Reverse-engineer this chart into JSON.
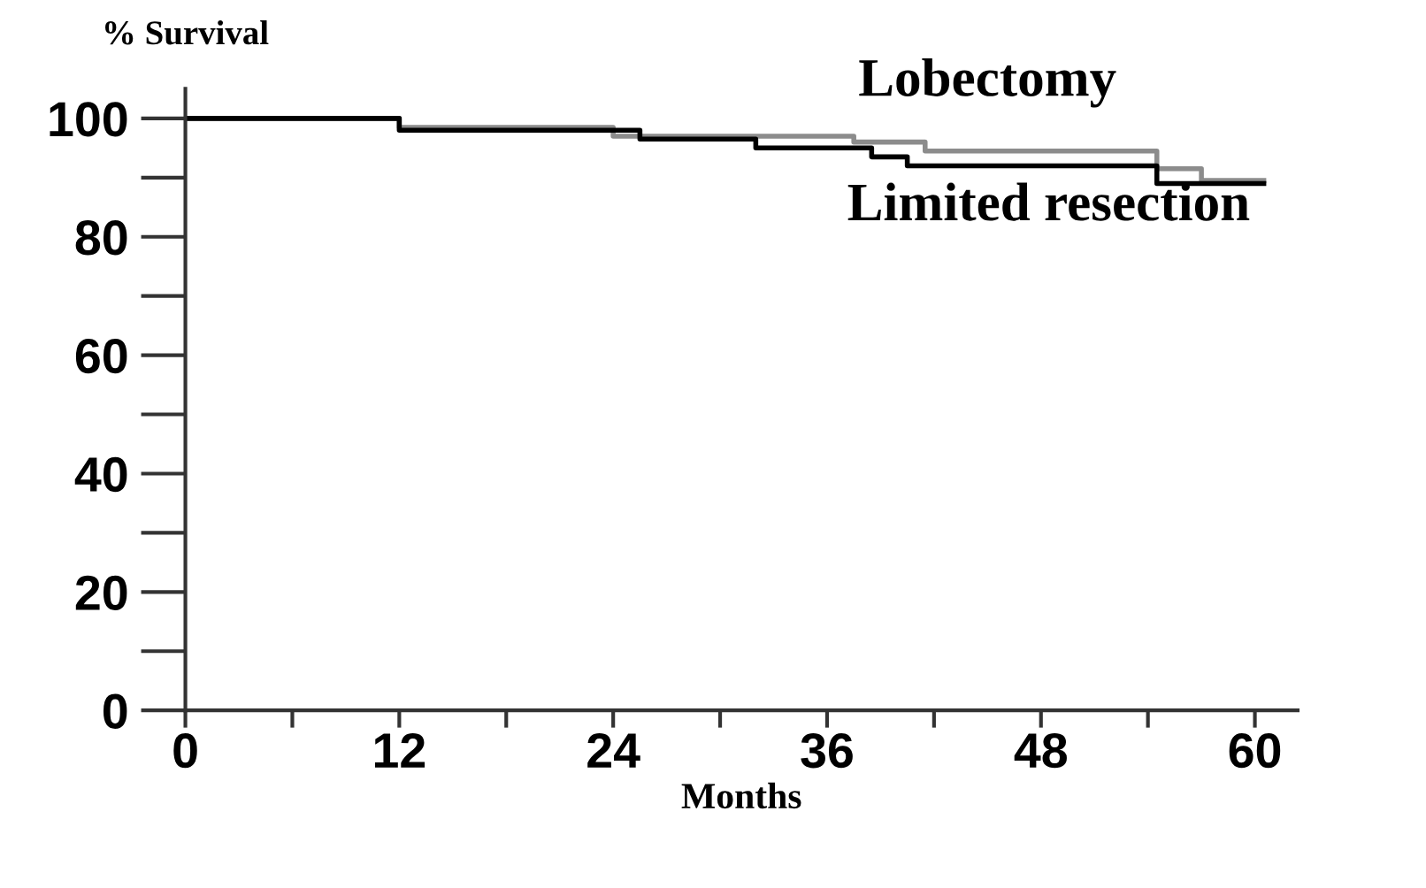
{
  "chart_data": {
    "type": "step",
    "xlabel": "Months",
    "ylabel": "% Survival",
    "series": [
      {
        "name": "Lobectomy",
        "color": "#8c8c8c",
        "x": [
          0,
          12,
          24,
          37.5,
          41.5,
          54.5,
          57,
          60.5
        ],
        "values": [
          100,
          98.5,
          97,
          96,
          94.5,
          91.5,
          89.5,
          89.5
        ]
      },
      {
        "name": "Limited resection",
        "color": "#000000",
        "x": [
          0,
          12,
          25.5,
          32,
          38.5,
          40.5,
          54.5,
          60.5
        ],
        "values": [
          100,
          98,
          96.5,
          95,
          93.5,
          92,
          89,
          89
        ]
      }
    ],
    "xlim": [
      0,
      62.4
    ],
    "ylim": [
      0,
      105
    ],
    "xticks": [
      0,
      12,
      24,
      36,
      48,
      60
    ],
    "yticks": [
      0,
      20,
      40,
      60,
      80,
      100
    ],
    "grid": false,
    "legend": false,
    "line_style": "solid",
    "marker": "none"
  }
}
